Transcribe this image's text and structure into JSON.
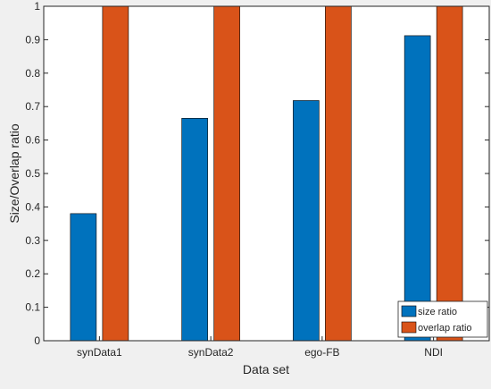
{
  "chart_data": {
    "type": "bar",
    "title": "",
    "xlabel": "Data set",
    "ylabel": "Size/Overlap ratio",
    "categories": [
      "synData1",
      "synData2",
      "ego-FB",
      "NDI"
    ],
    "series": [
      {
        "name": "size ratio",
        "color": "#0072BD",
        "values": [
          0.38,
          0.665,
          0.718,
          0.912
        ]
      },
      {
        "name": "overlap ratio",
        "color": "#D95319",
        "values": [
          1.0,
          1.0,
          1.0,
          1.0
        ]
      }
    ],
    "ylim": [
      0,
      1
    ],
    "yticks": [
      "0",
      "0.1",
      "0.2",
      "0.3",
      "0.4",
      "0.5",
      "0.6",
      "0.7",
      "0.8",
      "0.9",
      "1"
    ],
    "grid": false,
    "legend_position": "bottom-right"
  }
}
